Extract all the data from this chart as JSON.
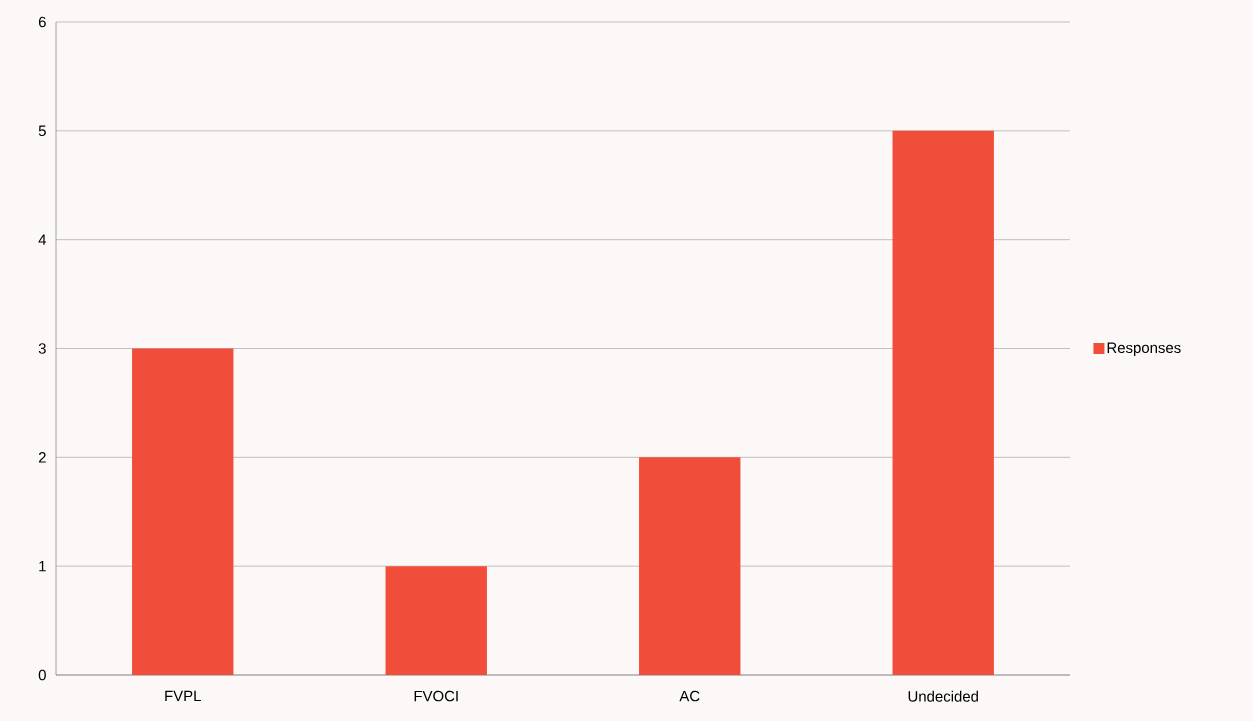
{
  "chart_data": {
    "type": "bar",
    "categories": [
      "FVPL",
      "FVOCI",
      "AC",
      "Undecided"
    ],
    "series": [
      {
        "name": "Responses",
        "color": "#f04e3a",
        "values": [
          3,
          1,
          2,
          5
        ]
      }
    ],
    "ylim": [
      0,
      6
    ],
    "yticks": [
      0,
      1,
      2,
      3,
      4,
      5,
      6
    ],
    "grid": "y",
    "legend": "right"
  }
}
